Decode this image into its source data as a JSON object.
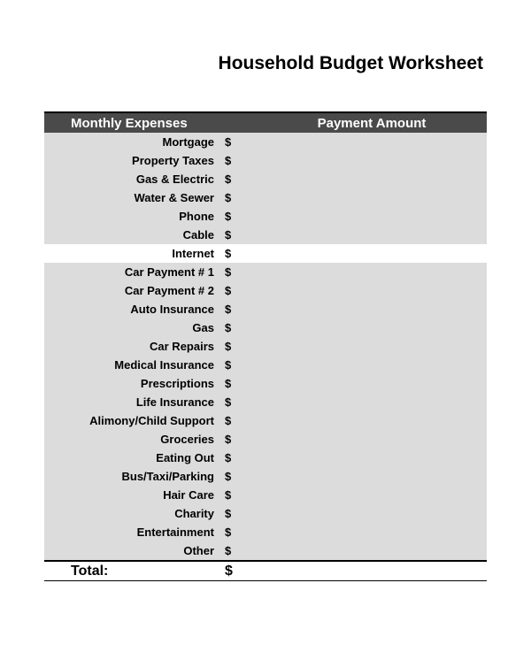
{
  "title": "Household Budget Worksheet",
  "table": {
    "header": {
      "label_col": "Monthly Expenses",
      "amount_col": "Payment Amount"
    },
    "currency_symbol": "$",
    "rows": [
      {
        "label": "Mortgage",
        "value": "",
        "shaded": true
      },
      {
        "label": "Property Taxes",
        "value": "",
        "shaded": true
      },
      {
        "label": "Gas & Electric",
        "value": "",
        "shaded": true
      },
      {
        "label": "Water & Sewer",
        "value": "",
        "shaded": true
      },
      {
        "label": "Phone",
        "value": "",
        "shaded": true
      },
      {
        "label": "Cable",
        "value": "",
        "shaded": true
      },
      {
        "label": "Internet",
        "value": "",
        "shaded": false
      },
      {
        "label": "Car Payment # 1",
        "value": "",
        "shaded": true
      },
      {
        "label": "Car Payment # 2",
        "value": "",
        "shaded": true
      },
      {
        "label": "Auto Insurance",
        "value": "",
        "shaded": true
      },
      {
        "label": "Gas",
        "value": "",
        "shaded": true
      },
      {
        "label": "Car Repairs",
        "value": "",
        "shaded": true
      },
      {
        "label": "Medical Insurance",
        "value": "",
        "shaded": true
      },
      {
        "label": "Prescriptions",
        "value": "",
        "shaded": true
      },
      {
        "label": "Life Insurance",
        "value": "",
        "shaded": true
      },
      {
        "label": "Alimony/Child Support",
        "value": "",
        "shaded": true
      },
      {
        "label": "Groceries",
        "value": "",
        "shaded": true
      },
      {
        "label": "Eating Out",
        "value": "",
        "shaded": true
      },
      {
        "label": "Bus/Taxi/Parking",
        "value": "",
        "shaded": true
      },
      {
        "label": "Hair Care",
        "value": "",
        "shaded": true
      },
      {
        "label": "Charity",
        "value": "",
        "shaded": true
      },
      {
        "label": "Entertainment",
        "value": "",
        "shaded": true
      },
      {
        "label": "Other",
        "value": "",
        "shaded": true
      }
    ],
    "total": {
      "label": "Total:",
      "value": ""
    }
  },
  "styling": {
    "background_color": "#ffffff",
    "header_bg": "#4a4a4a",
    "header_text": "#ffffff",
    "shaded_bg": "#dcdcdc",
    "border_color": "#000000",
    "title_fontsize": 21,
    "header_fontsize": 15,
    "row_fontsize": 13,
    "total_fontsize": 16,
    "font_family": "Arial"
  }
}
